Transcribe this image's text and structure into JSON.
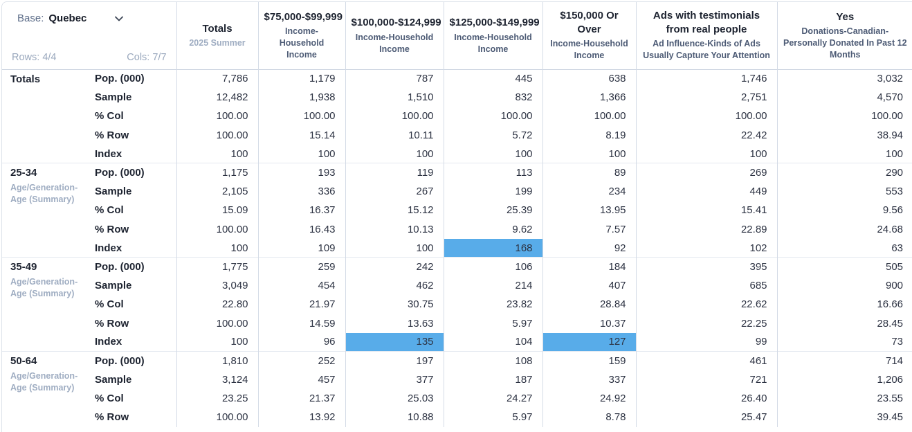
{
  "controls": {
    "base_label": "Base:",
    "base_value": "Quebec",
    "rows_info": "Rows: 4/4",
    "cols_info": "Cols: 7/7"
  },
  "colors": {
    "highlight_blue": "#58ace9",
    "muted_text": "#9fadc2",
    "header_subtitle": "#4d5b75"
  },
  "table": {
    "columns": [
      {
        "title": "Totals",
        "subtitle": "2025 Summer",
        "muted_subtitle": true
      },
      {
        "title": "$75,000-$99,999",
        "subtitle": "Income-Household Income",
        "muted_subtitle": false
      },
      {
        "title": "$100,000-$124,999",
        "subtitle": "Income-Household Income",
        "muted_subtitle": false
      },
      {
        "title": "$125,000-$149,999",
        "subtitle": "Income-Household Income",
        "muted_subtitle": false
      },
      {
        "title": "$150,000 Or Over",
        "subtitle": "Income-Household Income",
        "muted_subtitle": false
      },
      {
        "title": "Ads with testimonials from real people",
        "subtitle": "Ad Influence-Kinds of Ads Usually Capture Your Attention",
        "muted_subtitle": false
      },
      {
        "title": "Yes",
        "subtitle": "Donations-Canadian-Personally Donated In Past 12 Months",
        "muted_subtitle": false
      }
    ],
    "row_groups": [
      {
        "label": "Totals",
        "sublabel": "",
        "rows": [
          {
            "metric": "Pop. (000)",
            "values": [
              "7,786",
              "1,179",
              "787",
              "445",
              "638",
              "1,746",
              "3,032"
            ],
            "highlights": []
          },
          {
            "metric": "Sample",
            "values": [
              "12,482",
              "1,938",
              "1,510",
              "832",
              "1,366",
              "2,751",
              "4,570"
            ],
            "highlights": []
          },
          {
            "metric": "% Col",
            "values": [
              "100.00",
              "100.00",
              "100.00",
              "100.00",
              "100.00",
              "100.00",
              "100.00"
            ],
            "highlights": []
          },
          {
            "metric": "% Row",
            "values": [
              "100.00",
              "15.14",
              "10.11",
              "5.72",
              "8.19",
              "22.42",
              "38.94"
            ],
            "highlights": []
          },
          {
            "metric": "Index",
            "values": [
              "100",
              "100",
              "100",
              "100",
              "100",
              "100",
              "100"
            ],
            "highlights": []
          }
        ]
      },
      {
        "label": "25-34",
        "sublabel": "Age/Generation-Age (Summary)",
        "rows": [
          {
            "metric": "Pop. (000)",
            "values": [
              "1,175",
              "193",
              "119",
              "113",
              "89",
              "269",
              "290"
            ],
            "highlights": []
          },
          {
            "metric": "Sample",
            "values": [
              "2,105",
              "336",
              "267",
              "199",
              "234",
              "449",
              "553"
            ],
            "highlights": []
          },
          {
            "metric": "% Col",
            "values": [
              "15.09",
              "16.37",
              "15.12",
              "25.39",
              "13.95",
              "15.41",
              "9.56"
            ],
            "highlights": []
          },
          {
            "metric": "% Row",
            "values": [
              "100.00",
              "16.43",
              "10.13",
              "9.62",
              "7.57",
              "22.89",
              "24.68"
            ],
            "highlights": []
          },
          {
            "metric": "Index",
            "values": [
              "100",
              "109",
              "100",
              "168",
              "92",
              "102",
              "63"
            ],
            "highlights": [
              3
            ]
          }
        ]
      },
      {
        "label": "35-49",
        "sublabel": "Age/Generation-Age (Summary)",
        "rows": [
          {
            "metric": "Pop. (000)",
            "values": [
              "1,775",
              "259",
              "242",
              "106",
              "184",
              "395",
              "505"
            ],
            "highlights": []
          },
          {
            "metric": "Sample",
            "values": [
              "3,049",
              "454",
              "462",
              "214",
              "407",
              "685",
              "900"
            ],
            "highlights": []
          },
          {
            "metric": "% Col",
            "values": [
              "22.80",
              "21.97",
              "30.75",
              "23.82",
              "28.84",
              "22.62",
              "16.66"
            ],
            "highlights": []
          },
          {
            "metric": "% Row",
            "values": [
              "100.00",
              "14.59",
              "13.63",
              "5.97",
              "10.37",
              "22.25",
              "28.45"
            ],
            "highlights": []
          },
          {
            "metric": "Index",
            "values": [
              "100",
              "96",
              "135",
              "104",
              "127",
              "99",
              "73"
            ],
            "highlights": [
              2,
              4
            ]
          }
        ]
      },
      {
        "label": "50-64",
        "sublabel": "Age/Generation-Age (Summary)",
        "rows": [
          {
            "metric": "Pop. (000)",
            "values": [
              "1,810",
              "252",
              "197",
              "108",
              "159",
              "461",
              "714"
            ],
            "highlights": []
          },
          {
            "metric": "Sample",
            "values": [
              "3,124",
              "457",
              "377",
              "187",
              "337",
              "721",
              "1,206"
            ],
            "highlights": []
          },
          {
            "metric": "% Col",
            "values": [
              "23.25",
              "21.37",
              "25.03",
              "24.27",
              "24.92",
              "26.40",
              "23.55"
            ],
            "highlights": []
          },
          {
            "metric": "% Row",
            "values": [
              "100.00",
              "13.92",
              "10.88",
              "5.97",
              "8.78",
              "25.47",
              "39.45"
            ],
            "highlights": []
          }
        ]
      }
    ]
  }
}
